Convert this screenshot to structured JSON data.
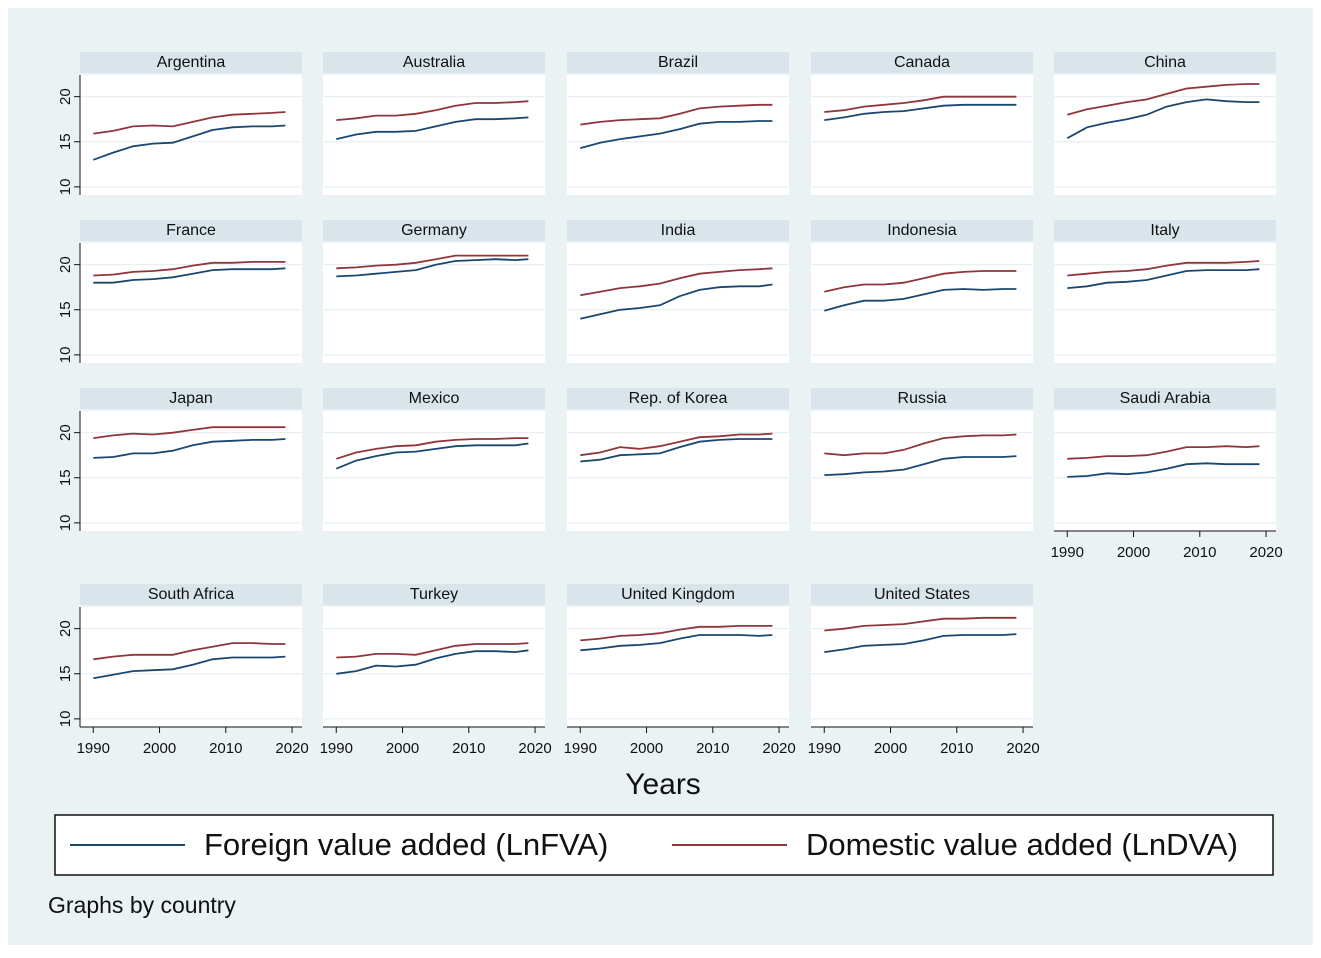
{
  "chart_data": {
    "type": "line",
    "xlabel": "Years",
    "note": "Graphs by country",
    "x": [
      1990,
      1993,
      1996,
      1999,
      2002,
      2005,
      2008,
      2011,
      2014,
      2017,
      2019
    ],
    "xlim": [
      1988,
      2021.5
    ],
    "xticks": [
      1990,
      2000,
      2010,
      2020
    ],
    "ylim": [
      9.1,
      22.4
    ],
    "yticks": [
      10,
      15,
      20
    ],
    "grid": true,
    "legend": [
      {
        "name": "Foreign value added (LnFVA)",
        "color": "#1a476f"
      },
      {
        "name": "Domestic value added (LnDVA)",
        "color": "#90353b"
      }
    ],
    "panels": [
      {
        "title": "Argentina",
        "series": [
          {
            "values": [
              13,
              13.8,
              14.5,
              14.8,
              14.9,
              15.6,
              16.3,
              16.6,
              16.7,
              16.7,
              16.8
            ]
          },
          {
            "values": [
              15.9,
              16.2,
              16.7,
              16.8,
              16.7,
              17.2,
              17.7,
              18,
              18.1,
              18.2,
              18.3
            ]
          }
        ]
      },
      {
        "title": "Australia",
        "series": [
          {
            "values": [
              15.3,
              15.8,
              16.1,
              16.1,
              16.2,
              16.7,
              17.2,
              17.5,
              17.5,
              17.6,
              17.7
            ]
          },
          {
            "values": [
              17.4,
              17.6,
              17.9,
              17.9,
              18.1,
              18.5,
              19,
              19.3,
              19.3,
              19.4,
              19.5
            ]
          }
        ]
      },
      {
        "title": "Brazil",
        "series": [
          {
            "values": [
              14.3,
              14.9,
              15.3,
              15.6,
              15.9,
              16.4,
              17,
              17.2,
              17.2,
              17.3,
              17.3
            ]
          },
          {
            "values": [
              16.9,
              17.2,
              17.4,
              17.5,
              17.6,
              18.1,
              18.7,
              18.9,
              19,
              19.1,
              19.1
            ]
          }
        ]
      },
      {
        "title": "Canada",
        "series": [
          {
            "values": [
              17.4,
              17.7,
              18.1,
              18.3,
              18.4,
              18.7,
              19,
              19.1,
              19.1,
              19.1,
              19.1
            ]
          },
          {
            "values": [
              18.3,
              18.5,
              18.9,
              19.1,
              19.3,
              19.6,
              20,
              20,
              20,
              20,
              20
            ]
          }
        ]
      },
      {
        "title": "China",
        "series": [
          {
            "values": [
              15.4,
              16.6,
              17.1,
              17.5,
              18,
              18.9,
              19.4,
              19.7,
              19.5,
              19.4,
              19.4
            ]
          },
          {
            "values": [
              18,
              18.6,
              19,
              19.4,
              19.7,
              20.3,
              20.9,
              21.1,
              21.3,
              21.4,
              21.4
            ]
          }
        ]
      },
      {
        "title": "France",
        "series": [
          {
            "values": [
              18,
              18,
              18.3,
              18.4,
              18.6,
              19,
              19.4,
              19.5,
              19.5,
              19.5,
              19.6
            ]
          },
          {
            "values": [
              18.8,
              18.9,
              19.2,
              19.3,
              19.5,
              19.9,
              20.2,
              20.2,
              20.3,
              20.3,
              20.3
            ]
          }
        ]
      },
      {
        "title": "Germany",
        "series": [
          {
            "values": [
              18.7,
              18.8,
              19,
              19.2,
              19.4,
              20,
              20.4,
              20.5,
              20.6,
              20.5,
              20.6
            ]
          },
          {
            "values": [
              19.6,
              19.7,
              19.9,
              20,
              20.2,
              20.6,
              21,
              21,
              21,
              21,
              21
            ]
          }
        ]
      },
      {
        "title": "India",
        "series": [
          {
            "values": [
              14,
              14.5,
              15,
              15.2,
              15.5,
              16.5,
              17.2,
              17.5,
              17.6,
              17.6,
              17.8
            ]
          },
          {
            "values": [
              16.6,
              17,
              17.4,
              17.6,
              17.9,
              18.5,
              19,
              19.2,
              19.4,
              19.5,
              19.6
            ]
          }
        ]
      },
      {
        "title": "Indonesia",
        "series": [
          {
            "values": [
              14.9,
              15.5,
              16,
              16,
              16.2,
              16.7,
              17.2,
              17.3,
              17.2,
              17.3,
              17.3
            ]
          },
          {
            "values": [
              17,
              17.5,
              17.8,
              17.8,
              18,
              18.5,
              19,
              19.2,
              19.3,
              19.3,
              19.3
            ]
          }
        ]
      },
      {
        "title": "Italy",
        "series": [
          {
            "values": [
              17.4,
              17.6,
              18,
              18.1,
              18.3,
              18.8,
              19.3,
              19.4,
              19.4,
              19.4,
              19.5
            ]
          },
          {
            "values": [
              18.8,
              19,
              19.2,
              19.3,
              19.5,
              19.9,
              20.2,
              20.2,
              20.2,
              20.3,
              20.4
            ]
          }
        ]
      },
      {
        "title": "Japan",
        "series": [
          {
            "values": [
              17.2,
              17.3,
              17.7,
              17.7,
              18,
              18.6,
              19,
              19.1,
              19.2,
              19.2,
              19.3
            ]
          },
          {
            "values": [
              19.4,
              19.7,
              19.9,
              19.8,
              20,
              20.3,
              20.6,
              20.6,
              20.6,
              20.6,
              20.6
            ]
          }
        ]
      },
      {
        "title": "Mexico",
        "series": [
          {
            "values": [
              16,
              16.9,
              17.4,
              17.8,
              17.9,
              18.2,
              18.5,
              18.6,
              18.6,
              18.6,
              18.8
            ]
          },
          {
            "values": [
              17.1,
              17.8,
              18.2,
              18.5,
              18.6,
              19,
              19.2,
              19.3,
              19.3,
              19.4,
              19.4
            ]
          }
        ]
      },
      {
        "title": "Rep. of Korea",
        "series": [
          {
            "values": [
              16.8,
              17,
              17.5,
              17.6,
              17.7,
              18.4,
              19,
              19.2,
              19.3,
              19.3,
              19.3
            ]
          },
          {
            "values": [
              17.5,
              17.8,
              18.4,
              18.2,
              18.5,
              19,
              19.5,
              19.6,
              19.8,
              19.8,
              19.9
            ]
          }
        ]
      },
      {
        "title": "Russia",
        "series": [
          {
            "values": [
              15.3,
              15.4,
              15.6,
              15.7,
              15.9,
              16.5,
              17.1,
              17.3,
              17.3,
              17.3,
              17.4
            ]
          },
          {
            "values": [
              17.7,
              17.5,
              17.7,
              17.7,
              18.1,
              18.8,
              19.4,
              19.6,
              19.7,
              19.7,
              19.8
            ]
          }
        ]
      },
      {
        "title": "Saudi Arabia",
        "series": [
          {
            "values": [
              15.1,
              15.2,
              15.5,
              15.4,
              15.6,
              16,
              16.5,
              16.6,
              16.5,
              16.5,
              16.5
            ]
          },
          {
            "values": [
              17.1,
              17.2,
              17.4,
              17.4,
              17.5,
              17.9,
              18.4,
              18.4,
              18.5,
              18.4,
              18.5
            ]
          }
        ]
      },
      {
        "title": "South Africa",
        "series": [
          {
            "values": [
              14.5,
              14.9,
              15.3,
              15.4,
              15.5,
              16,
              16.6,
              16.8,
              16.8,
              16.8,
              16.9
            ]
          },
          {
            "values": [
              16.6,
              16.9,
              17.1,
              17.1,
              17.1,
              17.6,
              18,
              18.4,
              18.4,
              18.3,
              18.3
            ]
          }
        ]
      },
      {
        "title": "Turkey",
        "series": [
          {
            "values": [
              15,
              15.3,
              15.9,
              15.8,
              16,
              16.7,
              17.2,
              17.5,
              17.5,
              17.4,
              17.6
            ]
          },
          {
            "values": [
              16.8,
              16.9,
              17.2,
              17.2,
              17.1,
              17.6,
              18.1,
              18.3,
              18.3,
              18.3,
              18.4
            ]
          }
        ]
      },
      {
        "title": "United Kingdom",
        "series": [
          {
            "values": [
              17.6,
              17.8,
              18.1,
              18.2,
              18.4,
              18.9,
              19.3,
              19.3,
              19.3,
              19.2,
              19.3
            ]
          },
          {
            "values": [
              18.7,
              18.9,
              19.2,
              19.3,
              19.5,
              19.9,
              20.2,
              20.2,
              20.3,
              20.3,
              20.3
            ]
          }
        ]
      },
      {
        "title": "United States",
        "series": [
          {
            "values": [
              17.4,
              17.7,
              18.1,
              18.2,
              18.3,
              18.7,
              19.2,
              19.3,
              19.3,
              19.3,
              19.4
            ]
          },
          {
            "values": [
              19.8,
              20,
              20.3,
              20.4,
              20.5,
              20.8,
              21.1,
              21.1,
              21.2,
              21.2,
              21.2
            ]
          }
        ]
      }
    ]
  }
}
